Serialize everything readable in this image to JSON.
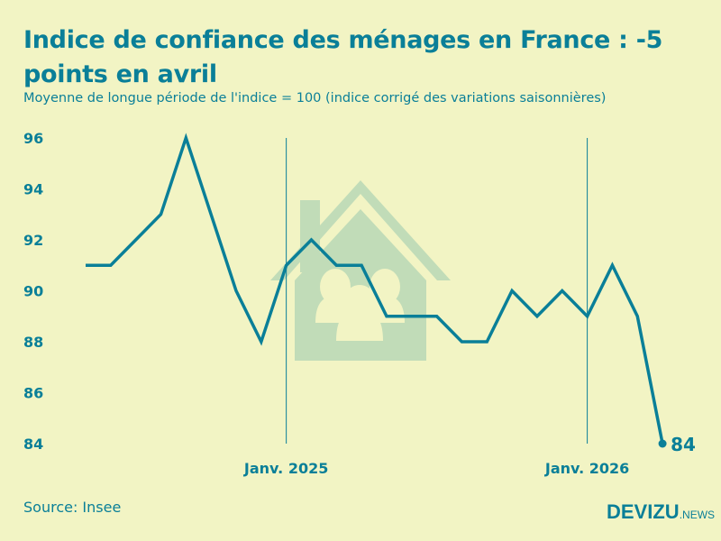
{
  "header": {
    "title": "Indice de confiance des ménages en France : -5 points en avril",
    "subtitle": "Moyenne de longue période de l'indice = 100 (indice corrigé des variations saisonnières)"
  },
  "footer": {
    "source": "Source: Insee",
    "logo_main": "DEVIZU",
    "logo_suffix": ".NEWS"
  },
  "colors": {
    "background": "#f2f4c4",
    "line": "#0a7f98",
    "illustration": "#c1dcb8"
  },
  "illustration_icon": "house-with-family-icon",
  "chart_data": {
    "type": "line",
    "title": "Indice de confiance des ménages en France : -5 points en avril",
    "subtitle": "Moyenne de longue période de l'indice = 100 (indice corrigé des variations saisonnières)",
    "x": [
      "2024-05",
      "2024-06",
      "2024-07",
      "2024-08",
      "2024-09",
      "2024-10",
      "2024-11",
      "2024-12",
      "2025-01",
      "2025-02",
      "2025-03",
      "2025-04",
      "2025-05",
      "2025-06",
      "2025-07",
      "2025-08",
      "2025-09",
      "2025-10",
      "2025-11",
      "2025-12",
      "2026-01",
      "2026-02",
      "2026-03",
      "2026-04"
    ],
    "values": [
      91,
      91,
      92,
      93,
      96,
      93,
      90,
      88,
      91,
      92,
      91,
      91,
      89,
      89,
      89,
      88,
      88,
      90,
      89,
      90,
      89,
      91,
      89,
      84
    ],
    "ylim": [
      84,
      96
    ],
    "yticks": [
      84,
      86,
      88,
      90,
      92,
      94,
      96
    ],
    "xticks": [
      {
        "x": "2025-01",
        "label": "Janv. 2025"
      },
      {
        "x": "2026-01",
        "label": "Janv. 2026"
      }
    ],
    "last_value_label": "84",
    "grid": "vertical lines at january only",
    "legend": "none"
  }
}
